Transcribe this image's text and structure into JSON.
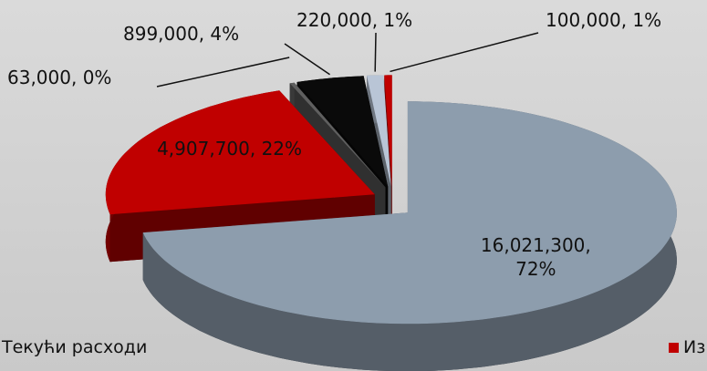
{
  "chart_data": {
    "type": "pie",
    "pie_3d": true,
    "exploded": true,
    "categories": [
      "Текући расходи",
      "Из",
      null,
      null,
      null,
      null
    ],
    "values": [
      16021300,
      4907700,
      63000,
      899000,
      220000,
      100000
    ],
    "value_labels": [
      "16,021,300, 72%",
      "4,907,700, 22%",
      "63,000, 0%",
      "899,000, 4%",
      "220,000, 1%",
      "100,000, 1%"
    ],
    "colors": [
      "#8d9dad",
      "#c00000",
      "#5f5f5f",
      "#0a0a0a",
      "#b9c5d6",
      "#c00000"
    ],
    "legend": "bottom"
  }
}
